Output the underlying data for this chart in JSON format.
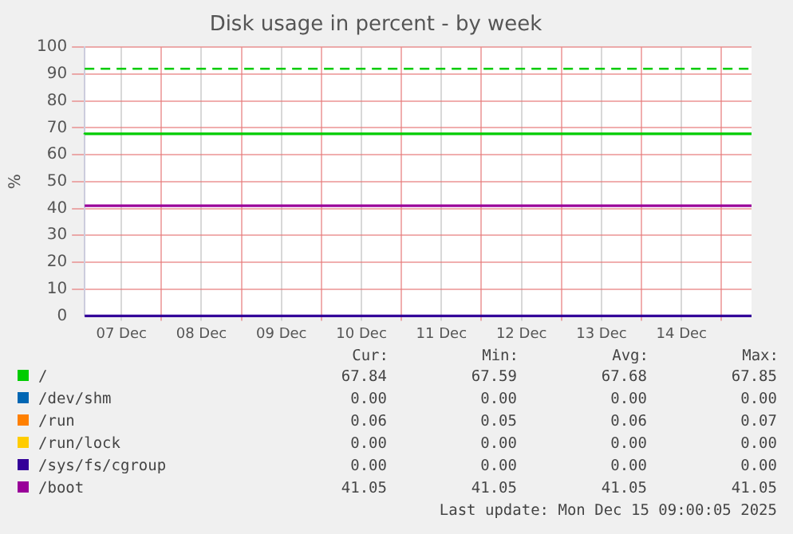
{
  "chart_data": {
    "type": "line",
    "title": "Disk usage in percent - by week",
    "ylabel": "%",
    "xlim": [
      "2025-12-07T01:00",
      "2025-12-15T09:00"
    ],
    "xticks": [
      {
        "value": "2025-12-07T12:00",
        "label": "07 Dec"
      },
      {
        "value": "2025-12-08T00:00",
        "label": null
      },
      {
        "value": "2025-12-08T12:00",
        "label": "08 Dec"
      },
      {
        "value": "2025-12-09T00:00",
        "label": null
      },
      {
        "value": "2025-12-09T12:00",
        "label": "09 Dec"
      },
      {
        "value": "2025-12-10T00:00",
        "label": null
      },
      {
        "value": "2025-12-10T12:00",
        "label": "10 Dec"
      },
      {
        "value": "2025-12-11T00:00",
        "label": null
      },
      {
        "value": "2025-12-11T12:00",
        "label": "11 Dec"
      },
      {
        "value": "2025-12-12T00:00",
        "label": null
      },
      {
        "value": "2025-12-12T12:00",
        "label": "12 Dec"
      },
      {
        "value": "2025-12-13T00:00",
        "label": null
      },
      {
        "value": "2025-12-13T12:00",
        "label": "13 Dec"
      },
      {
        "value": "2025-12-14T00:00",
        "label": null
      },
      {
        "value": "2025-12-14T12:00",
        "label": "14 Dec"
      },
      {
        "value": "2025-12-15T00:00",
        "label": null
      }
    ],
    "ylim": [
      0,
      100
    ],
    "yticks": [
      0,
      10,
      20,
      30,
      40,
      50,
      60,
      70,
      80,
      90,
      100
    ],
    "grid": true,
    "legend": "bottom",
    "series": [
      {
        "name": "/",
        "color": "#00cc00",
        "type": "step",
        "x": [
          "2025-12-07T01:00",
          "2025-12-13T07:00",
          "2025-12-15T09:00"
        ],
        "values": [
          67.6,
          67.8,
          67.8
        ]
      },
      {
        "name": "/dev/shm",
        "color": "#0066b3",
        "values": [
          null,
          null
        ]
      },
      {
        "name": "/run",
        "color": "#ff8000",
        "values": [
          null,
          null
        ]
      },
      {
        "name": "/run/lock",
        "color": "#ffcc00",
        "values": [
          null,
          null
        ]
      },
      {
        "name": "/sys/fs/cgroup",
        "color": "#330099",
        "x": [
          "2025-12-07T01:00",
          "2025-12-15T09:00"
        ],
        "values": [
          0,
          0
        ]
      },
      {
        "name": "/boot",
        "color": "#990099",
        "x": [
          "2025-12-07T01:00",
          "2025-12-15T09:00"
        ],
        "values": [
          41,
          41
        ]
      }
    ],
    "ref_lines": [
      {
        "axis": "y",
        "value": 92,
        "color": "#00cc00",
        "line_style": "dashed"
      }
    ],
    "annotations": [
      "Cur:",
      "Min:",
      "Avg:",
      "Max:",
      "67.84",
      "67.59",
      "67.68",
      "67.85",
      "0.00",
      "0.00",
      "0.00",
      "0.00",
      "0.06",
      "0.05",
      "0.06",
      "0.07",
      "0.00",
      "0.00",
      "0.00",
      "0.00",
      "0.00",
      "0.00",
      "0.00",
      "0.00",
      "41.05",
      "41.05",
      "41.05",
      "41.05",
      "Last update: Mon Dec 15 09:00:05 2025"
    ]
  }
}
